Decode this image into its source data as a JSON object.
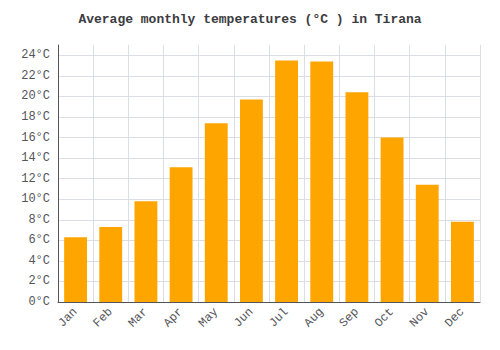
{
  "chart_data": {
    "type": "bar",
    "title": "Average monthly temperatures (°C ) in Tirana",
    "categories": [
      "Jan",
      "Feb",
      "Mar",
      "Apr",
      "May",
      "Jun",
      "Jul",
      "Aug",
      "Sep",
      "Oct",
      "Nov",
      "Dec"
    ],
    "values": [
      6.3,
      7.3,
      9.8,
      13.1,
      17.4,
      19.7,
      23.5,
      23.4,
      20.4,
      16.0,
      11.4,
      7.8
    ],
    "color": "#FFA500",
    "ylim": [
      0,
      25
    ],
    "yticks": [
      {
        "value": 0,
        "label": "0°C"
      },
      {
        "value": 2,
        "label": "2°C"
      },
      {
        "value": 4,
        "label": "4°C"
      },
      {
        "value": 6,
        "label": "6°C"
      },
      {
        "value": 8,
        "label": "8°C"
      },
      {
        "value": 10,
        "label": "10°C"
      },
      {
        "value": 12,
        "label": "12°C"
      },
      {
        "value": 14,
        "label": "14°C"
      },
      {
        "value": 16,
        "label": "16°C"
      },
      {
        "value": 18,
        "label": "18°C"
      },
      {
        "value": 20,
        "label": "20°C"
      },
      {
        "value": 22,
        "label": "22°C"
      },
      {
        "value": 24,
        "label": "24°C"
      }
    ],
    "grid": true
  }
}
